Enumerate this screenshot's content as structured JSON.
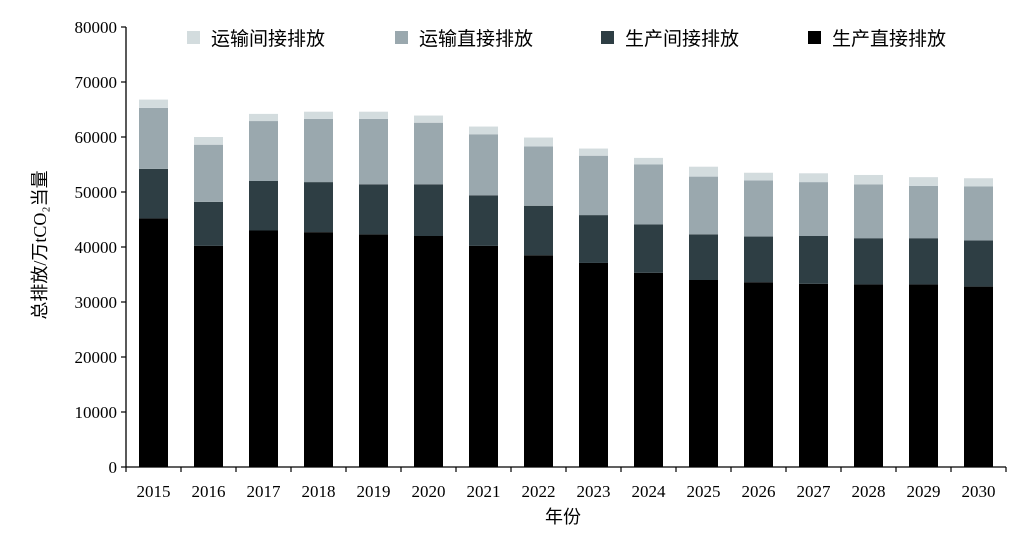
{
  "chart_data": {
    "type": "bar",
    "stacked": true,
    "title": "",
    "xlabel": "年份",
    "ylabel": "总排放/万tCO₂当量",
    "ylim": [
      0,
      80000
    ],
    "yticks": [
      0,
      10000,
      20000,
      30000,
      40000,
      50000,
      60000,
      70000,
      80000
    ],
    "grid": false,
    "legend": "top",
    "categories": [
      "2015",
      "2016",
      "2017",
      "2018",
      "2019",
      "2020",
      "2021",
      "2022",
      "2023",
      "2024",
      "2025",
      "2026",
      "2027",
      "2028",
      "2029",
      "2030"
    ],
    "series": [
      {
        "name": "生产直接排放",
        "color": "#000000",
        "values": [
          45200,
          40200,
          43000,
          42700,
          42300,
          42000,
          40200,
          38500,
          37100,
          35300,
          34000,
          33600,
          33300,
          33200,
          33200,
          32800
        ]
      },
      {
        "name": "生产间接排放",
        "color": "#2e3e44",
        "values": [
          9000,
          8000,
          9000,
          9100,
          9100,
          9400,
          9200,
          9000,
          8700,
          8800,
          8300,
          8300,
          8700,
          8400,
          8400,
          8400
        ]
      },
      {
        "name": "运输直接排放",
        "color": "#9aa8ae",
        "values": [
          11100,
          10400,
          10900,
          11500,
          11900,
          11200,
          11100,
          10800,
          10800,
          10900,
          10500,
          10200,
          9800,
          9800,
          9500,
          9800
        ]
      },
      {
        "name": "运输间接排放",
        "color": "#d3dcde",
        "values": [
          1500,
          1400,
          1300,
          1300,
          1300,
          1300,
          1400,
          1600,
          1300,
          1200,
          1800,
          1400,
          1600,
          1700,
          1600,
          1500
        ]
      }
    ],
    "legend_order": [
      3,
      2,
      1,
      0
    ]
  }
}
